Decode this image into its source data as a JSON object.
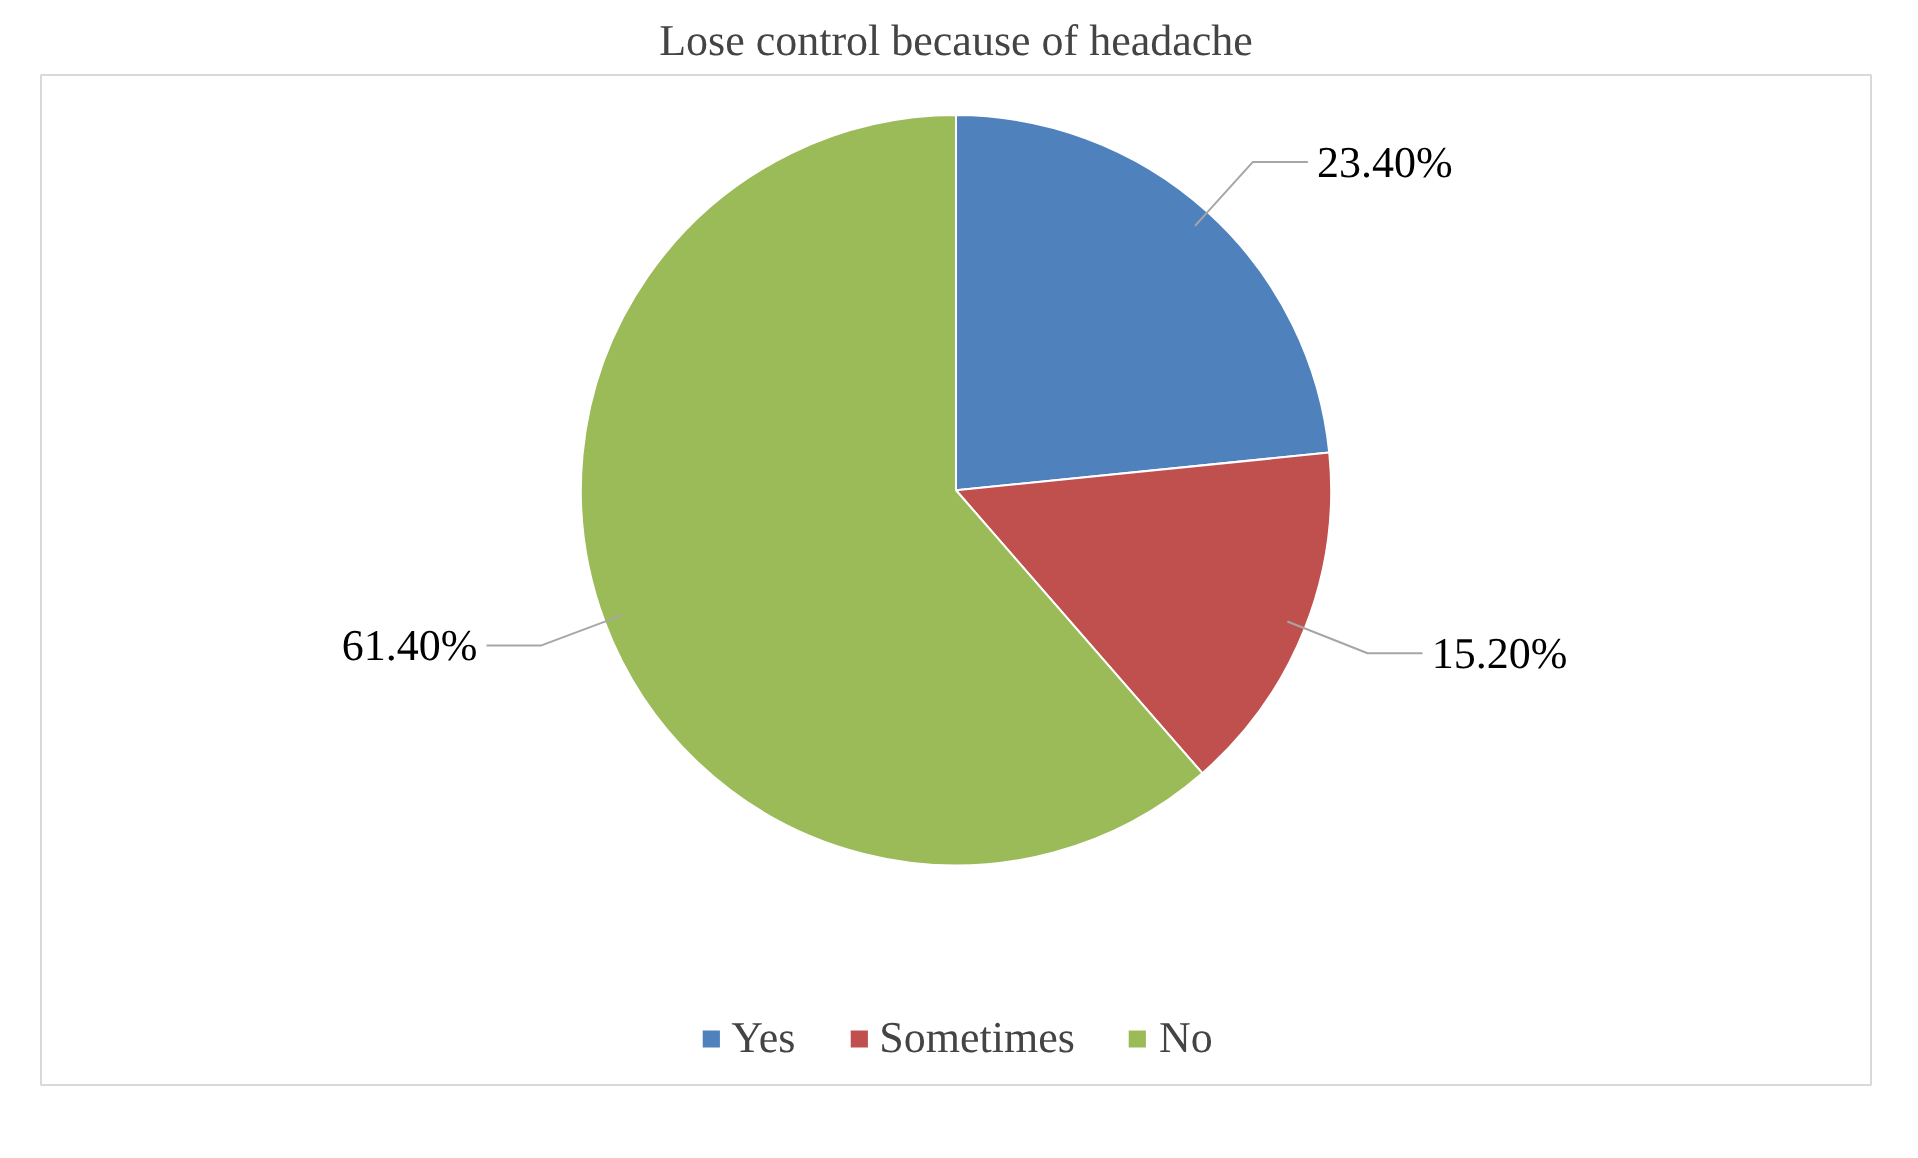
{
  "chart_data": {
    "type": "pie",
    "title": "Lose control because of headache",
    "categories": [
      "Yes",
      "Sometimes",
      "No"
    ],
    "values": [
      23.4,
      15.2,
      61.4
    ],
    "colors": [
      "#4f81bd",
      "#c0504d",
      "#9bbb59"
    ],
    "value_labels": [
      "23.40%",
      "15.20%",
      "61.40%"
    ],
    "legend": "bottom"
  }
}
